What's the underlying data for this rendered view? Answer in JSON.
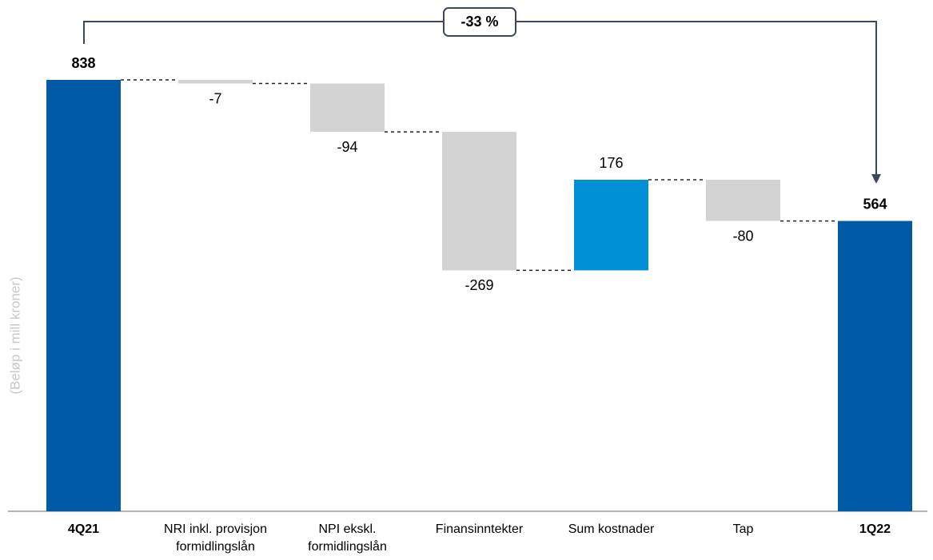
{
  "chart_data": {
    "type": "waterfall",
    "annotation": "-33 %",
    "y_label": "(Beløp i mill kroner)",
    "categories": [
      "4Q21",
      "NRI inkl. provisjon formidlingslån",
      "NPI ekskl. formidlingslån",
      "Finansinntekter",
      "Sum kostnader",
      "Tap",
      "1Q22"
    ],
    "values": [
      838,
      -7,
      -94,
      -269,
      176,
      -80,
      564
    ],
    "colors": [
      "#005aa5",
      "#d3d3d3",
      "#d3d3d3",
      "#d3d3d3",
      "#0090d5",
      "#d3d3d3",
      "#005aa5"
    ],
    "ylim": [
      0,
      838
    ]
  }
}
